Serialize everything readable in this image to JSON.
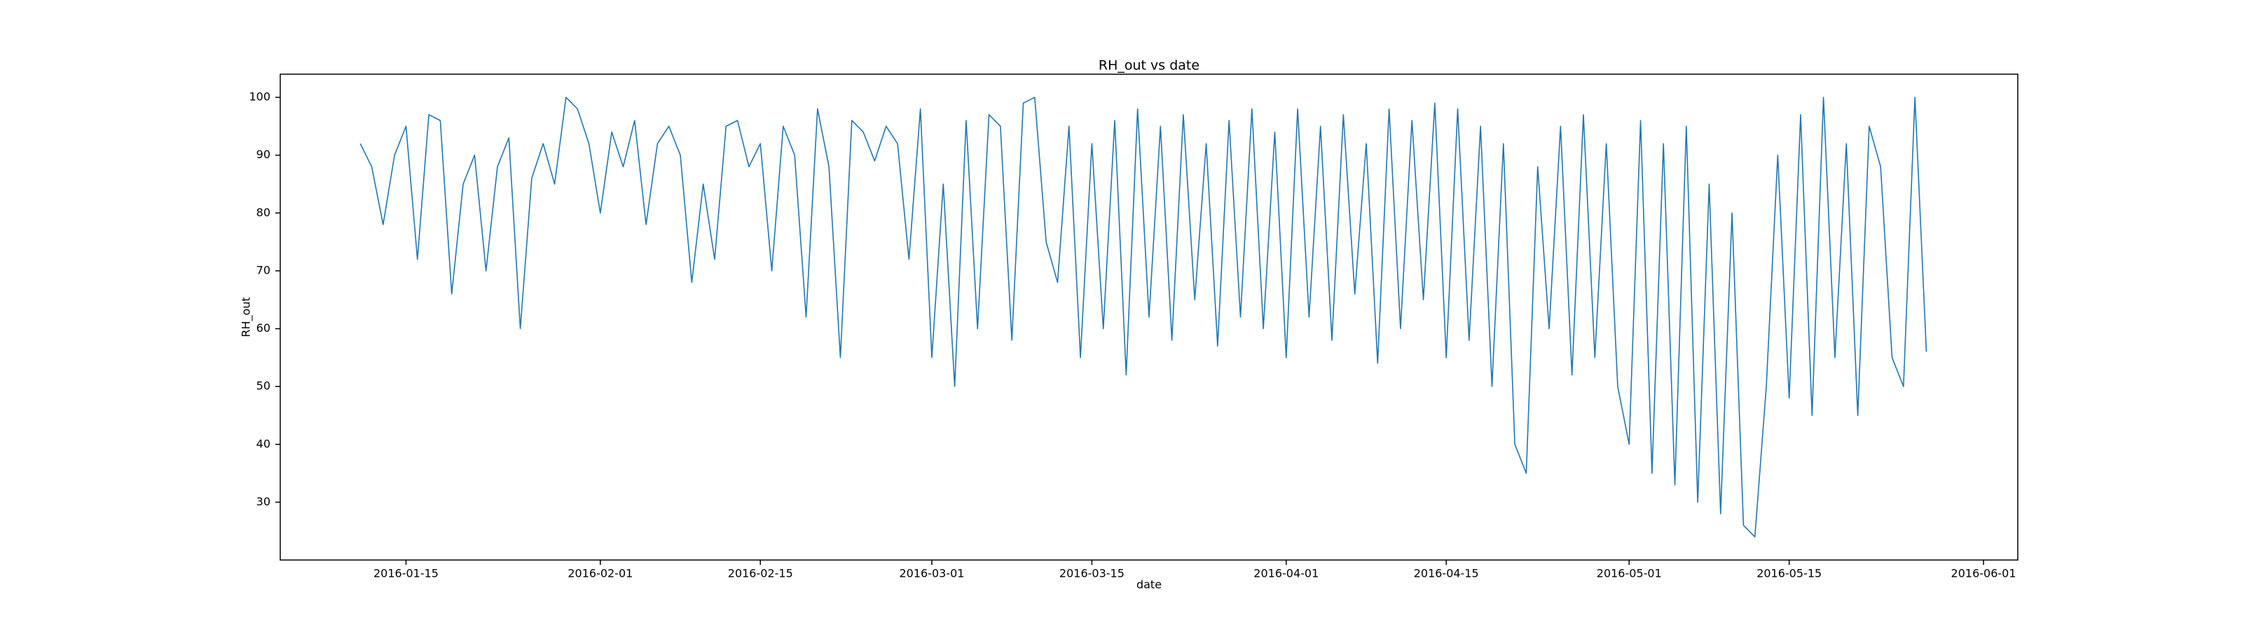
{
  "chart_data": {
    "type": "line",
    "title": "RH_out vs date",
    "x_label": "date",
    "y_label": "RH_out",
    "color": "#1f77b4",
    "x": [
      "2016-01-11",
      "2016-01-12",
      "2016-01-13",
      "2016-01-14",
      "2016-01-15",
      "2016-01-16",
      "2016-01-17",
      "2016-01-18",
      "2016-01-19",
      "2016-01-20",
      "2016-01-21",
      "2016-01-22",
      "2016-01-23",
      "2016-01-24",
      "2016-01-25",
      "2016-01-26",
      "2016-01-27",
      "2016-01-28",
      "2016-01-29",
      "2016-01-30",
      "2016-01-31",
      "2016-02-01",
      "2016-02-02",
      "2016-02-03",
      "2016-02-04",
      "2016-02-05",
      "2016-02-06",
      "2016-02-07",
      "2016-02-08",
      "2016-02-09",
      "2016-02-10",
      "2016-02-11",
      "2016-02-12",
      "2016-02-13",
      "2016-02-14",
      "2016-02-15",
      "2016-02-16",
      "2016-02-17",
      "2016-02-18",
      "2016-02-19",
      "2016-02-20",
      "2016-02-21",
      "2016-02-22",
      "2016-02-23",
      "2016-02-24",
      "2016-02-25",
      "2016-02-26",
      "2016-02-27",
      "2016-02-28",
      "2016-02-29",
      "2016-03-01",
      "2016-03-02",
      "2016-03-03",
      "2016-03-04",
      "2016-03-05",
      "2016-03-06",
      "2016-03-07",
      "2016-03-08",
      "2016-03-09",
      "2016-03-10",
      "2016-03-11",
      "2016-03-12",
      "2016-03-13",
      "2016-03-14",
      "2016-03-15",
      "2016-03-16",
      "2016-03-17",
      "2016-03-18",
      "2016-03-19",
      "2016-03-20",
      "2016-03-21",
      "2016-03-22",
      "2016-03-23",
      "2016-03-24",
      "2016-03-25",
      "2016-03-26",
      "2016-03-27",
      "2016-03-28",
      "2016-03-29",
      "2016-03-30",
      "2016-03-31",
      "2016-04-01",
      "2016-04-02",
      "2016-04-03",
      "2016-04-04",
      "2016-04-05",
      "2016-04-06",
      "2016-04-07",
      "2016-04-08",
      "2016-04-09",
      "2016-04-10",
      "2016-04-11",
      "2016-04-12",
      "2016-04-13",
      "2016-04-14",
      "2016-04-15",
      "2016-04-16",
      "2016-04-17",
      "2016-04-18",
      "2016-04-19",
      "2016-04-20",
      "2016-04-21",
      "2016-04-22",
      "2016-04-23",
      "2016-04-24",
      "2016-04-25",
      "2016-04-26",
      "2016-04-27",
      "2016-04-28",
      "2016-04-29",
      "2016-04-30",
      "2016-05-01",
      "2016-05-02",
      "2016-05-03",
      "2016-05-04",
      "2016-05-05",
      "2016-05-06",
      "2016-05-07",
      "2016-05-08",
      "2016-05-09",
      "2016-05-10",
      "2016-05-11",
      "2016-05-12",
      "2016-05-13",
      "2016-05-14",
      "2016-05-15",
      "2016-05-16",
      "2016-05-17",
      "2016-05-18",
      "2016-05-19",
      "2016-05-20",
      "2016-05-21",
      "2016-05-22",
      "2016-05-23",
      "2016-05-24",
      "2016-05-25",
      "2016-05-26",
      "2016-05-27"
    ],
    "values": [
      92,
      88,
      78,
      90,
      95,
      72,
      97,
      96,
      66,
      85,
      90,
      70,
      88,
      93,
      60,
      86,
      92,
      85,
      100,
      98,
      92,
      80,
      94,
      88,
      96,
      78,
      92,
      95,
      90,
      68,
      85,
      72,
      95,
      96,
      88,
      92,
      70,
      95,
      90,
      62,
      98,
      88,
      55,
      96,
      94,
      89,
      95,
      92,
      72,
      98,
      55,
      85,
      50,
      96,
      60,
      97,
      95,
      58,
      99,
      100,
      75,
      68,
      95,
      55,
      92,
      60,
      96,
      52,
      98,
      62,
      95,
      58,
      97,
      65,
      92,
      57,
      96,
      62,
      98,
      60,
      94,
      55,
      98,
      62,
      95,
      58,
      97,
      66,
      92,
      54,
      98,
      60,
      96,
      65,
      99,
      55,
      98,
      58,
      95,
      50,
      92,
      40,
      35,
      88,
      60,
      95,
      52,
      97,
      55,
      92,
      50,
      40,
      96,
      35,
      92,
      33,
      95,
      30,
      85,
      28,
      80,
      26,
      24,
      50,
      90,
      48,
      97,
      45,
      100,
      55,
      92,
      45,
      95,
      88,
      55,
      50,
      100,
      56
    ],
    "xlim": [
      "2016-01-04",
      "2016-06-04"
    ],
    "xticks": [
      "2016-01-15",
      "2016-02-01",
      "2016-02-15",
      "2016-03-01",
      "2016-03-15",
      "2016-04-01",
      "2016-04-15",
      "2016-05-01",
      "2016-05-15",
      "2016-06-01"
    ],
    "ylim": [
      20,
      104
    ],
    "yticks": [
      30,
      40,
      50,
      60,
      70,
      80,
      90,
      100
    ],
    "grid": false
  }
}
